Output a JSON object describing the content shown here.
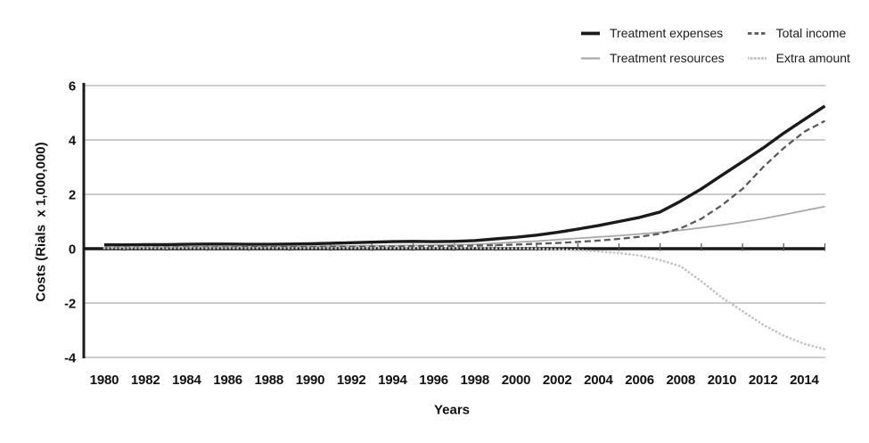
{
  "figure": {
    "background": "#ffffff",
    "accent_black": "#1a1a1a",
    "grid_color": "#999999"
  },
  "legend": {
    "position": "top-right",
    "items": [
      "Treatment expenses",
      "Treatment resources",
      "Total income",
      "Extra amount"
    ]
  },
  "chart_data": {
    "type": "line",
    "title": "",
    "xlabel": "Years",
    "ylabel": "Costs (Rials  x 1,000,000)",
    "grid": "horizontal",
    "zero_line_emphasized": true,
    "legend_position": "top-right",
    "ylim": [
      -4,
      6
    ],
    "y_ticks": [
      -4,
      -2,
      0,
      2,
      4,
      6
    ],
    "y_tick_labels": [
      "-4",
      "-2",
      "0",
      "2",
      "4",
      "6"
    ],
    "x_tick_labels": [
      1980,
      1982,
      1984,
      1986,
      1988,
      1990,
      1992,
      1994,
      1996,
      1998,
      2000,
      2002,
      2004,
      2006,
      2008,
      2010,
      2012,
      2014
    ],
    "x_minor_tick_years": [
      1981,
      1983,
      1985,
      1987,
      1989,
      1991,
      1993,
      1995,
      1997,
      1999,
      2001,
      2003,
      2005,
      2007,
      2009,
      2011,
      2013,
      2015
    ],
    "x": [
      1980,
      1981,
      1982,
      1983,
      1984,
      1985,
      1986,
      1987,
      1988,
      1989,
      1990,
      1991,
      1992,
      1993,
      1994,
      1995,
      1996,
      1997,
      1998,
      1999,
      2000,
      2001,
      2002,
      2003,
      2004,
      2005,
      2006,
      2007,
      2008,
      2009,
      2010,
      2011,
      2012,
      2013,
      2014,
      2015
    ],
    "series": [
      {
        "name": "Treatment expenses",
        "color": "#1a1a1a",
        "dash": "solid",
        "stroke_width": 3.4,
        "values": [
          0.14,
          0.14,
          0.15,
          0.15,
          0.16,
          0.17,
          0.17,
          0.16,
          0.16,
          0.17,
          0.18,
          0.2,
          0.22,
          0.24,
          0.26,
          0.27,
          0.26,
          0.27,
          0.3,
          0.36,
          0.42,
          0.5,
          0.6,
          0.72,
          0.85,
          1.0,
          1.15,
          1.35,
          1.75,
          2.2,
          2.7,
          3.2,
          3.7,
          4.25,
          4.75,
          5.25
        ]
      },
      {
        "name": "Treatment resources",
        "color": "#a8a8a8",
        "dash": "solid",
        "stroke_width": 1.8,
        "values": [
          0.06,
          0.06,
          0.07,
          0.07,
          0.07,
          0.08,
          0.08,
          0.08,
          0.08,
          0.09,
          0.09,
          0.1,
          0.1,
          0.11,
          0.11,
          0.12,
          0.13,
          0.14,
          0.16,
          0.2,
          0.24,
          0.28,
          0.33,
          0.38,
          0.43,
          0.48,
          0.54,
          0.6,
          0.68,
          0.77,
          0.87,
          0.98,
          1.1,
          1.25,
          1.4,
          1.55
        ]
      },
      {
        "name": "Total income",
        "color": "#5a5a5a",
        "dash": "dashed",
        "stroke_width": 2.3,
        "values": [
          0.04,
          0.04,
          0.04,
          0.05,
          0.05,
          0.05,
          0.05,
          0.06,
          0.06,
          0.06,
          0.06,
          0.07,
          0.07,
          0.08,
          0.08,
          0.09,
          0.09,
          0.1,
          0.11,
          0.13,
          0.15,
          0.18,
          0.21,
          0.25,
          0.3,
          0.36,
          0.44,
          0.55,
          0.75,
          1.1,
          1.6,
          2.2,
          3.0,
          3.7,
          4.3,
          4.7
        ]
      },
      {
        "name": "Extra amount",
        "color": "#c1c1c1",
        "dash": "dotted",
        "stroke_width": 2.7,
        "values": [
          0.02,
          0.02,
          0.02,
          0.02,
          0.02,
          0.02,
          0.02,
          0.02,
          0.02,
          0.02,
          0.02,
          0.02,
          0.02,
          0.02,
          0.02,
          0.02,
          0.02,
          0.02,
          0.02,
          0.01,
          0.01,
          0.0,
          -0.02,
          -0.05,
          -0.1,
          -0.16,
          -0.25,
          -0.42,
          -0.65,
          -1.2,
          -1.8,
          -2.3,
          -2.8,
          -3.2,
          -3.5,
          -3.7
        ]
      }
    ]
  }
}
